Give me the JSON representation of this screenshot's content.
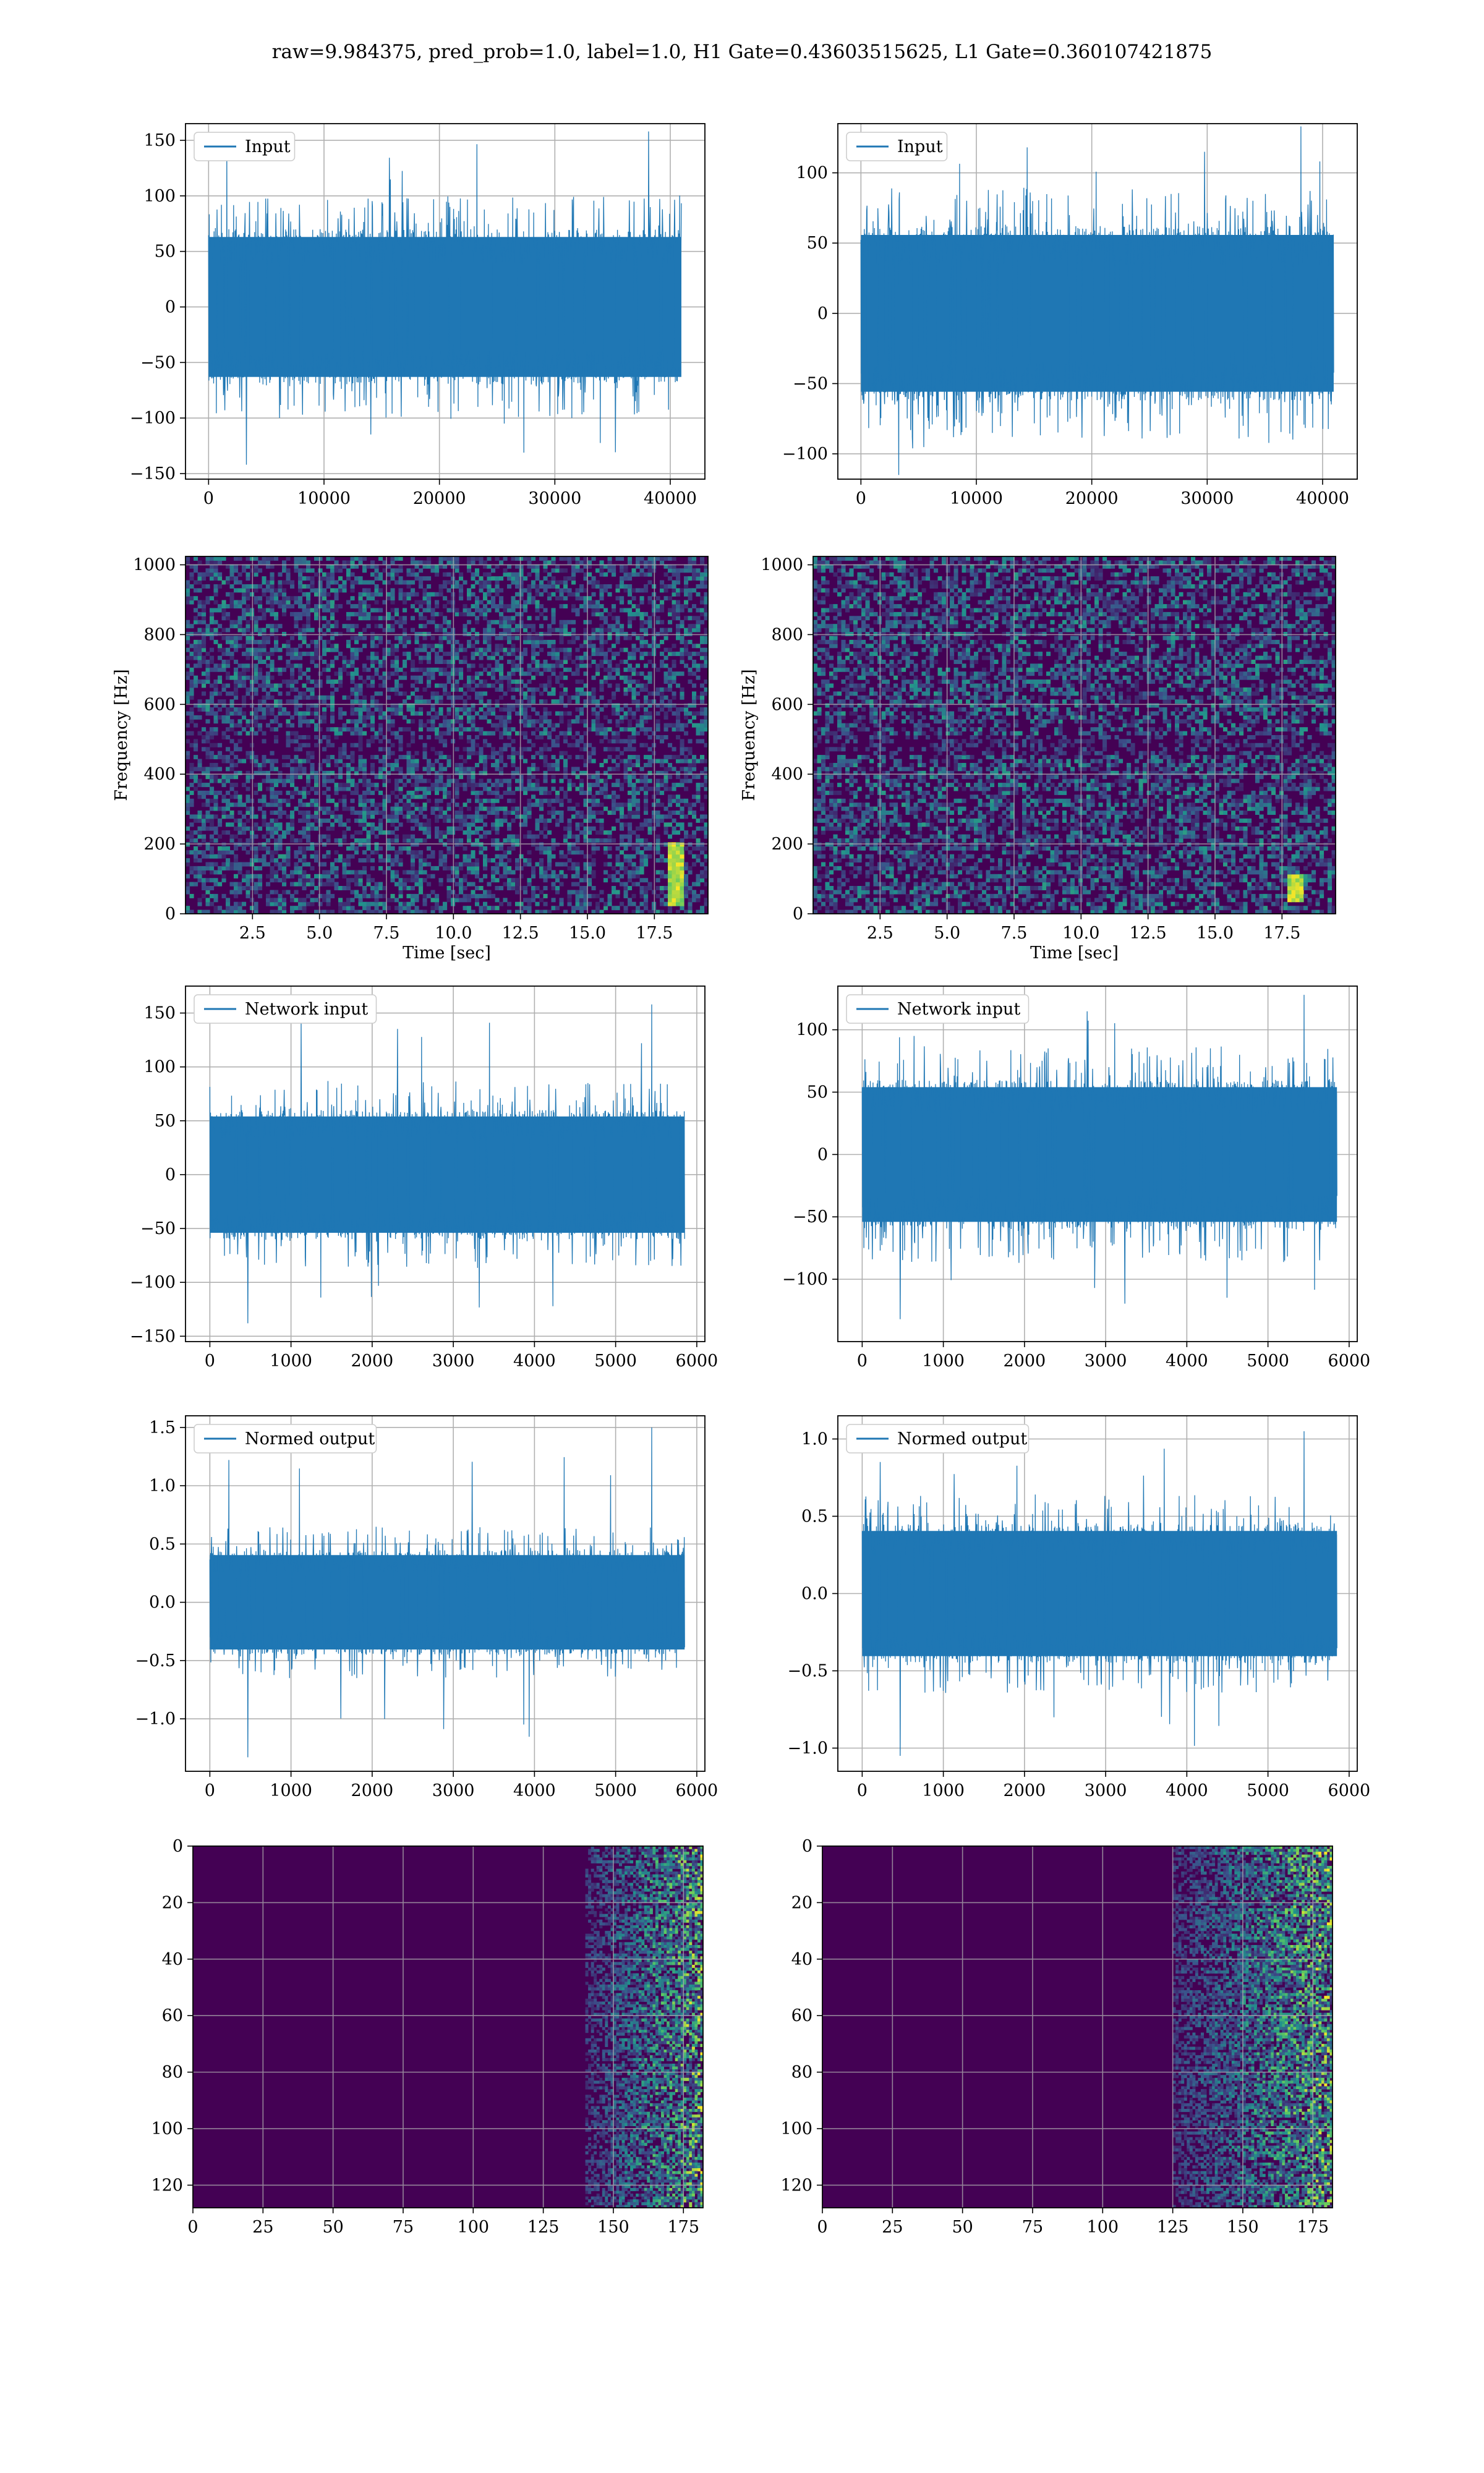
{
  "figure": {
    "title": "raw=9.984375, pred_prob=1.0, label=1.0, H1 Gate=0.43603515625, L1 Gate=0.360107421875"
  },
  "colors": {
    "line": "#1f77b4",
    "grid": "#b0b0b0",
    "viridis_low": "#440154",
    "viridis_mid": "#21918c",
    "viridis_high": "#fde725"
  },
  "chart_data": [
    {
      "id": "input_h1",
      "type": "line",
      "legend": "Input",
      "xlim": [
        -2000,
        43000
      ],
      "ylim": [
        -155,
        165
      ],
      "xticks": [
        0,
        10000,
        20000,
        30000,
        40000
      ],
      "yticks": [
        -150,
        -100,
        -50,
        0,
        50,
        100,
        150
      ],
      "x_range": [
        0,
        40960
      ],
      "envelope": [
        70,
        -70
      ],
      "peak_max": 158,
      "peak_min": -142,
      "xlabel": "",
      "ylabel": "",
      "grid": true
    },
    {
      "id": "input_l1",
      "type": "line",
      "legend": "Input",
      "xlim": [
        -2000,
        43000
      ],
      "ylim": [
        -118,
        135
      ],
      "xticks": [
        0,
        10000,
        20000,
        30000,
        40000
      ],
      "yticks": [
        -100,
        -50,
        0,
        50,
        100
      ],
      "x_range": [
        0,
        40960
      ],
      "envelope": [
        62,
        -62
      ],
      "peak_max": 133,
      "peak_min": -115,
      "xlabel": "",
      "ylabel": "",
      "grid": true
    },
    {
      "id": "spec_h1",
      "type": "heatmap",
      "xlim": [
        0,
        19.5
      ],
      "ylim": [
        0,
        1024
      ],
      "xticks": [
        2.5,
        5.0,
        7.5,
        10.0,
        12.5,
        15.0,
        17.5
      ],
      "yticks": [
        0,
        200,
        400,
        600,
        800,
        1000
      ],
      "xlabel": "Time [sec]",
      "ylabel": "Frequency [Hz]",
      "colormap": "viridis",
      "grid": true,
      "feature": {
        "t": 18.3,
        "f_range": [
          20,
          200
        ]
      }
    },
    {
      "id": "spec_l1",
      "type": "heatmap",
      "xlim": [
        0,
        19.5
      ],
      "ylim": [
        0,
        1024
      ],
      "xticks": [
        2.5,
        5.0,
        7.5,
        10.0,
        12.5,
        15.0,
        17.5
      ],
      "yticks": [
        0,
        200,
        400,
        600,
        800,
        1000
      ],
      "xlabel": "Time [sec]",
      "ylabel": "Frequency [Hz]",
      "colormap": "viridis",
      "grid": true,
      "feature": {
        "t": 18.0,
        "f_range": [
          30,
          110
        ]
      }
    },
    {
      "id": "net_h1",
      "type": "line",
      "legend": "Network input",
      "xlim": [
        -300,
        6100
      ],
      "ylim": [
        -155,
        175
      ],
      "xticks": [
        0,
        1000,
        2000,
        3000,
        4000,
        5000,
        6000
      ],
      "yticks": [
        -150,
        -100,
        -50,
        0,
        50,
        100,
        150
      ],
      "x_range": [
        0,
        5850
      ],
      "envelope": [
        60,
        -60
      ],
      "peak_max": 158,
      "peak_min": -138,
      "xlabel": "",
      "ylabel": "",
      "grid": true
    },
    {
      "id": "net_l1",
      "type": "line",
      "legend": "Network input",
      "xlim": [
        -300,
        6100
      ],
      "ylim": [
        -150,
        135
      ],
      "xticks": [
        0,
        1000,
        2000,
        3000,
        4000,
        5000,
        6000
      ],
      "yticks": [
        -100,
        -50,
        0,
        50,
        100
      ],
      "x_range": [
        0,
        5850
      ],
      "envelope": [
        60,
        -60
      ],
      "peak_max": 128,
      "peak_min": -132,
      "xlabel": "",
      "ylabel": "",
      "grid": true
    },
    {
      "id": "norm_h1",
      "type": "line",
      "legend": "Normed output",
      "xlim": [
        -300,
        6100
      ],
      "ylim": [
        -1.45,
        1.6
      ],
      "xticks": [
        0,
        1000,
        2000,
        3000,
        4000,
        5000,
        6000
      ],
      "yticks": [
        -1.0,
        -0.5,
        0.0,
        0.5,
        1.0,
        1.5
      ],
      "x_range": [
        0,
        5850
      ],
      "envelope": [
        0.45,
        -0.45
      ],
      "peak_max": 1.5,
      "peak_min": -1.33,
      "xlabel": "",
      "ylabel": "",
      "grid": true
    },
    {
      "id": "norm_l1",
      "type": "line",
      "legend": "Normed output",
      "xlim": [
        -300,
        6100
      ],
      "ylim": [
        -1.15,
        1.15
      ],
      "xticks": [
        0,
        1000,
        2000,
        3000,
        4000,
        5000,
        6000
      ],
      "yticks": [
        -1.0,
        -0.5,
        0.0,
        0.5,
        1.0
      ],
      "x_range": [
        0,
        5850
      ],
      "envelope": [
        0.45,
        -0.45
      ],
      "peak_max": 1.05,
      "peak_min": -1.05,
      "xlabel": "",
      "ylabel": "",
      "grid": true
    },
    {
      "id": "feat_h1",
      "type": "heatmap",
      "xlim": [
        0,
        182
      ],
      "ylim": [
        128,
        0
      ],
      "xticks": [
        0,
        25,
        50,
        75,
        100,
        125,
        150,
        175
      ],
      "yticks": [
        0,
        20,
        40,
        60,
        80,
        100,
        120
      ],
      "xlabel": "",
      "ylabel": "",
      "colormap": "viridis",
      "grid": true,
      "active_region": [
        140,
        180
      ]
    },
    {
      "id": "feat_l1",
      "type": "heatmap",
      "xlim": [
        0,
        182
      ],
      "ylim": [
        128,
        0
      ],
      "xticks": [
        0,
        25,
        50,
        75,
        100,
        125,
        150,
        175
      ],
      "yticks": [
        0,
        20,
        40,
        60,
        80,
        100,
        120
      ],
      "xlabel": "",
      "ylabel": "",
      "colormap": "viridis",
      "grid": true,
      "active_region": [
        125,
        180
      ]
    }
  ]
}
